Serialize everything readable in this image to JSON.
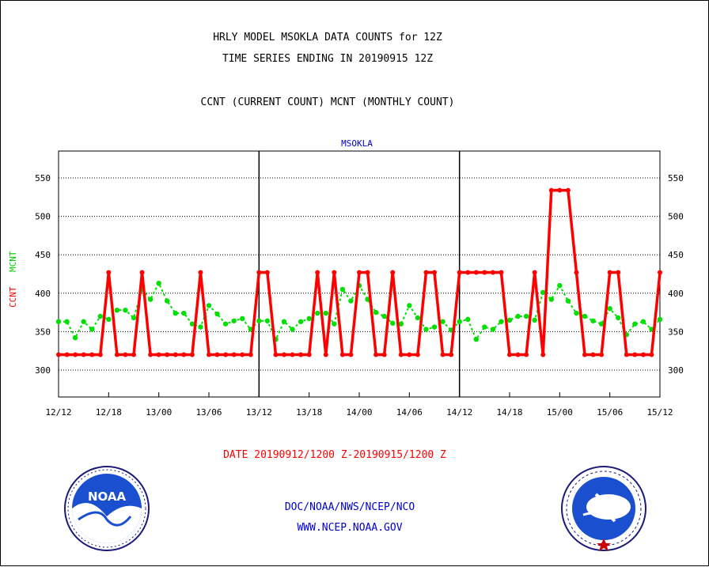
{
  "header": {
    "line1": "HRLY MODEL MSOKLA DATA COUNTS for 12Z",
    "line2": "TIME SERIES ENDING IN 20190915 12Z",
    "line3": "CCNT (CURRENT COUNT) MCNT (MONTHLY COUNT)"
  },
  "footer": {
    "date_range": "DATE 20190912/1200 Z-20190915/1200 Z",
    "org": "DOC/NOAA/NWS/NCEP/NCO",
    "url": "WWW.NCEP.NOAA.GOV"
  },
  "logos": {
    "left": {
      "icon": "noaa-logo",
      "text": "NOAA"
    },
    "right": {
      "icon": "nws-logo"
    }
  },
  "colors": {
    "ccnt": "#ff0000",
    "mcnt": "#00e000",
    "title": "#000000",
    "station": "#0000cc",
    "footer_blue": "#0000cc",
    "date_red": "#ff0000"
  },
  "chart_data": {
    "type": "line",
    "title": "MSOKLA",
    "ylabel_left": [
      "CCNT",
      "MCNT"
    ],
    "ylim": [
      265,
      585
    ],
    "yticks": [
      300,
      350,
      400,
      450,
      500,
      550
    ],
    "xlim": [
      0,
      72
    ],
    "xticks": [
      {
        "x": 0,
        "label": "12/12"
      },
      {
        "x": 6,
        "label": "12/18"
      },
      {
        "x": 12,
        "label": "13/00"
      },
      {
        "x": 18,
        "label": "13/06"
      },
      {
        "x": 24,
        "label": "13/12"
      },
      {
        "x": 30,
        "label": "13/18"
      },
      {
        "x": 36,
        "label": "14/00"
      },
      {
        "x": 42,
        "label": "14/06"
      },
      {
        "x": 48,
        "label": "14/12"
      },
      {
        "x": 54,
        "label": "14/18"
      },
      {
        "x": 60,
        "label": "15/00"
      },
      {
        "x": 66,
        "label": "15/06"
      },
      {
        "x": 72,
        "label": "15/12"
      }
    ],
    "day_boundaries": [
      24,
      48
    ],
    "grid": "horizontal dotted",
    "series": [
      {
        "name": "CCNT",
        "values": [
          320,
          320,
          320,
          320,
          320,
          320,
          427,
          320,
          320,
          320,
          427,
          320,
          320,
          320,
          320,
          320,
          320,
          427,
          320,
          320,
          320,
          320,
          320,
          320,
          427,
          427,
          320,
          320,
          320,
          320,
          320,
          427,
          320,
          427,
          320,
          320,
          427,
          427,
          320,
          320,
          427,
          320,
          320,
          320,
          427,
          427,
          320,
          320,
          427,
          427,
          427,
          427,
          427,
          427,
          320,
          320,
          320,
          427,
          320,
          534,
          534,
          534,
          427,
          320,
          320,
          320,
          427,
          427,
          320,
          320,
          320,
          320,
          427
        ]
      },
      {
        "name": "MCNT",
        "values": [
          363,
          363,
          342,
          363,
          353,
          370,
          366,
          378,
          378,
          368,
          405,
          392,
          413,
          390,
          374,
          374,
          360,
          356,
          384,
          373,
          360,
          364,
          367,
          353,
          364,
          364,
          340,
          363,
          353,
          363,
          367,
          374,
          374,
          360,
          405,
          390,
          410,
          392,
          375,
          370,
          361,
          360,
          384,
          368,
          353,
          356,
          363,
          352,
          363,
          366,
          340,
          356,
          353,
          363,
          365,
          370,
          370,
          365,
          401,
          392,
          410,
          390,
          374,
          370,
          364,
          360,
          380,
          368,
          346,
          360,
          363,
          353,
          366
        ]
      }
    ]
  }
}
